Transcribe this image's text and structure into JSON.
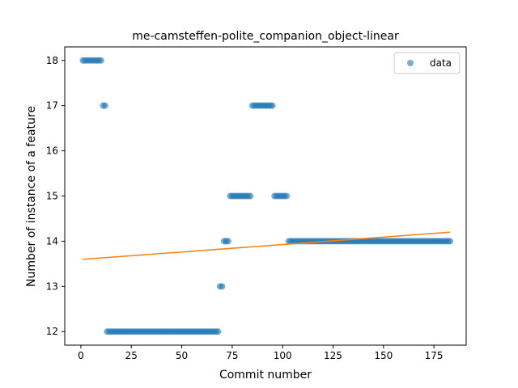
{
  "chart_data": {
    "type": "scatter",
    "title": "me-camsteffen-polite_companion_object-linear",
    "xlabel": "Commit number",
    "ylabel": "Number of instance of a feature",
    "xlim": [
      -8,
      191
    ],
    "ylim": [
      11.7,
      18.3
    ],
    "xticks": [
      0,
      25,
      50,
      75,
      100,
      125,
      150,
      175
    ],
    "yticks": [
      12,
      13,
      14,
      15,
      16,
      17,
      18
    ],
    "grid": false,
    "legend": {
      "placement": "top-right",
      "entries": [
        "data"
      ]
    },
    "colors": {
      "data": "#1f77b4",
      "fit": "#ff7f0e"
    },
    "segments": [
      {
        "x_start": 1,
        "x_end": 10,
        "y": 18
      },
      {
        "x_start": 11,
        "x_end": 12,
        "y": 17
      },
      {
        "x_start": 13,
        "x_end": 68,
        "y": 12
      },
      {
        "x_start": 69,
        "x_end": 70,
        "y": 13
      },
      {
        "x_start": 71,
        "x_end": 73,
        "y": 14
      },
      {
        "x_start": 74,
        "x_end": 84,
        "y": 15
      },
      {
        "x_start": 85,
        "x_end": 95,
        "y": 17
      },
      {
        "x_start": 96,
        "x_end": 102,
        "y": 15
      },
      {
        "x_start": 103,
        "x_end": 183,
        "y": 14
      }
    ],
    "fit_line": {
      "x": [
        1,
        183
      ],
      "y": [
        13.6,
        14.2
      ]
    }
  }
}
